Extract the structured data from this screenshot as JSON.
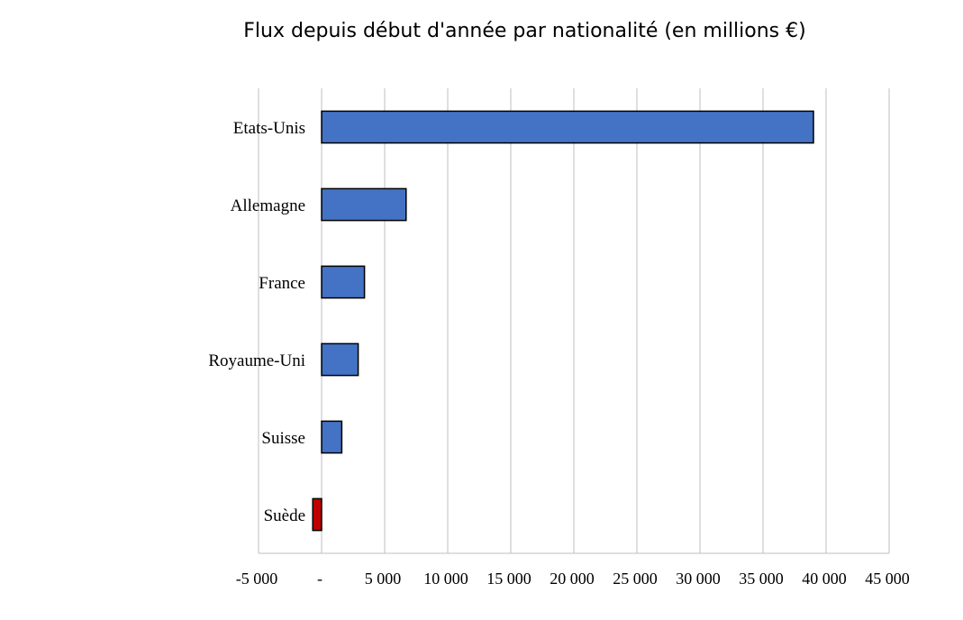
{
  "chart_data": {
    "type": "bar",
    "orientation": "horizontal",
    "title": "Flux depuis début d'année par nationalité (en millions €)",
    "categories": [
      "Etats-Unis",
      "Allemagne",
      "France",
      "Royaume-Uni",
      "Suisse",
      "Suède"
    ],
    "values": [
      39000,
      6700,
      3400,
      2900,
      1600,
      -700
    ],
    "xlim": [
      -5000,
      45000
    ],
    "xticks": [
      -5000,
      0,
      5000,
      10000,
      15000,
      20000,
      25000,
      30000,
      35000,
      40000,
      45000
    ],
    "xtick_labels": [
      "-5 000",
      "-",
      "5 000",
      "10 000",
      "15 000",
      "20 000",
      "25 000",
      "30 000",
      "35 000",
      "40 000",
      "45 000"
    ],
    "grid": true,
    "colors": {
      "positive": "#4472C4",
      "negative": "#C00000",
      "border": "#000000",
      "grid": "#BFBFBF"
    }
  }
}
